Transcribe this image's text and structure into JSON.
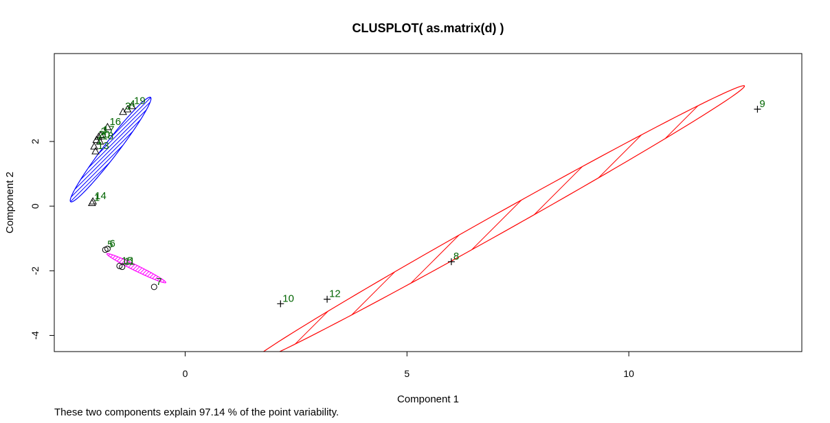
{
  "chart_data": {
    "type": "scatter",
    "title": "CLUSPLOT( as.matrix(d) )",
    "xlabel": "Component 1",
    "ylabel": "Component 2",
    "footnote": "These two components explain 97.14 % of the point variability.",
    "xlim": [
      -2.95,
      13.9
    ],
    "ylim": [
      -4.5,
      4.72
    ],
    "x_ticks": [
      0,
      5,
      10
    ],
    "y_ticks": [
      -4,
      -2,
      0,
      2
    ],
    "grid": false,
    "legend": "none",
    "label_color": "#006400",
    "point_color": "#000000",
    "clusters": [
      {
        "id": 1,
        "marker": "circle",
        "ellipse_color": "#FF00FF",
        "shading": "dense",
        "ellipse": {
          "cx": -1.1,
          "cy": -1.92,
          "a": 0.8,
          "b": 0.08,
          "angle_deg": -34
        },
        "points": [
          {
            "label": "5",
            "x": -1.8,
            "y": -1.35
          },
          {
            "label": "6",
            "x": -1.75,
            "y": -1.32
          },
          {
            "label": "15",
            "x": -1.48,
            "y": -1.85
          },
          {
            "label": "11",
            "x": -1.42,
            "y": -1.88
          },
          {
            "label": "7",
            "x": -0.7,
            "y": -2.5
          }
        ]
      },
      {
        "id": 2,
        "marker": "triangle",
        "ellipse_color": "#0000FF",
        "shading": "sparse",
        "ellipse": {
          "cx": -1.68,
          "cy": 1.75,
          "a": 1.85,
          "b": 0.18,
          "angle_deg": 61
        },
        "points": [
          {
            "label": "19",
            "x": -1.2,
            "y": 3.1
          },
          {
            "label": "4",
            "x": -1.3,
            "y": 3.0
          },
          {
            "label": "3",
            "x": -1.4,
            "y": 2.92
          },
          {
            "label": "16",
            "x": -1.75,
            "y": 2.45
          },
          {
            "label": "17",
            "x": -1.9,
            "y": 2.2
          },
          {
            "label": "2",
            "x": -1.95,
            "y": 2.15
          },
          {
            "label": "20",
            "x": -2.0,
            "y": 2.05
          },
          {
            "label": "18",
            "x": -1.92,
            "y": 2.0
          },
          {
            "label": "1",
            "x": -2.05,
            "y": 1.85
          },
          {
            "label": "13",
            "x": -2.02,
            "y": 1.7
          },
          {
            "label": "14",
            "x": -2.08,
            "y": 0.15
          },
          {
            "label": "1",
            "x": -2.1,
            "y": 0.1
          }
        ]
      },
      {
        "id": 3,
        "marker": "plus",
        "ellipse_color": "#FF0000",
        "shading": "sparse",
        "ellipse": {
          "cx": 7.02,
          "cy": -0.58,
          "a": 7.05,
          "b": 0.27,
          "angle_deg": 37.6
        },
        "points": [
          {
            "label": "9",
            "x": 12.9,
            "y": 3.0
          },
          {
            "label": "8",
            "x": 6.0,
            "y": -1.72
          },
          {
            "label": "12",
            "x": 3.2,
            "y": -2.88
          },
          {
            "label": "10",
            "x": 2.15,
            "y": -3.02
          }
        ]
      }
    ]
  }
}
